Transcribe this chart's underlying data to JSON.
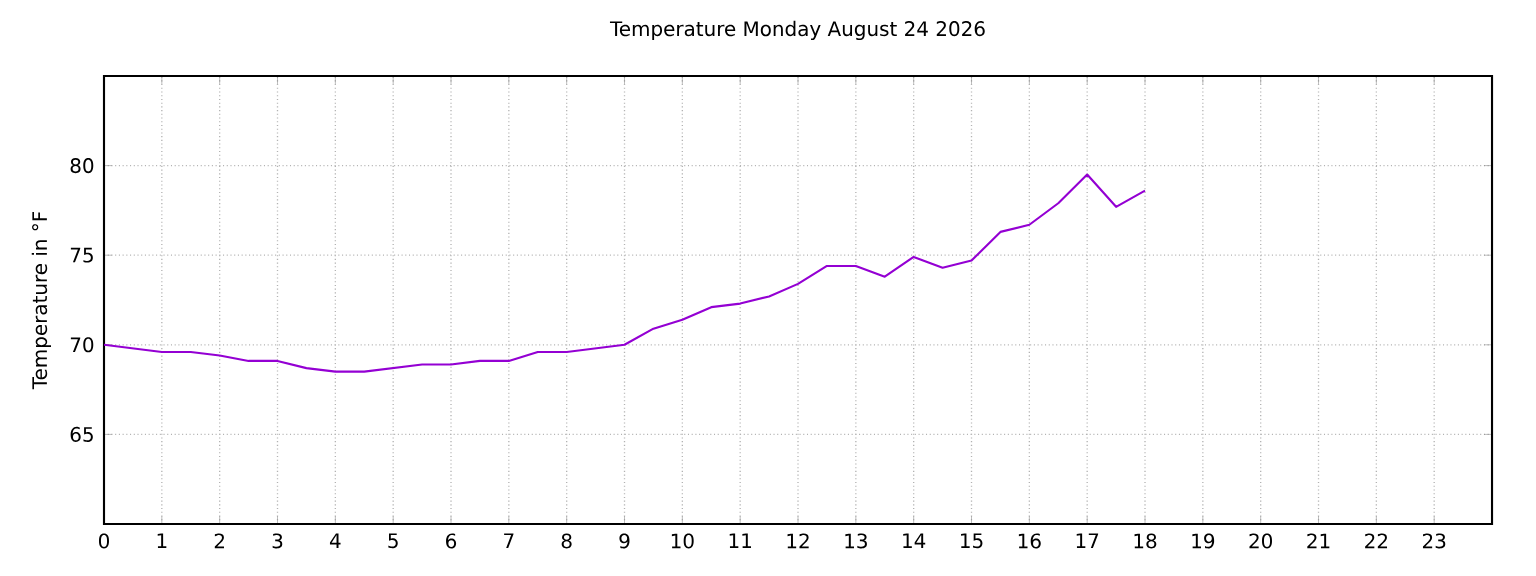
{
  "chart_data": {
    "type": "line",
    "title": "Temperature Monday August 24 2026",
    "ylabel": "Temperature in °F",
    "x": [
      0,
      0.5,
      1,
      1.5,
      2,
      2.5,
      3,
      3.5,
      4,
      4.5,
      5,
      5.5,
      6,
      6.5,
      7,
      7.5,
      8,
      8.5,
      9,
      9.5,
      10,
      10.5,
      11,
      11.5,
      12,
      12.5,
      13,
      13.5,
      14,
      14.5,
      15,
      15.5,
      16,
      16.5,
      17,
      17.5,
      18
    ],
    "series": [
      {
        "color": "#9400d3",
        "values": [
          70.0,
          69.8,
          69.6,
          69.6,
          69.4,
          69.1,
          69.1,
          68.7,
          68.5,
          68.5,
          68.7,
          68.9,
          68.9,
          69.1,
          69.1,
          69.6,
          69.6,
          69.8,
          70.0,
          70.9,
          71.4,
          72.1,
          72.3,
          72.7,
          73.4,
          74.4,
          74.4,
          73.8,
          74.9,
          74.3,
          74.7,
          76.3,
          76.7,
          77.9,
          79.5,
          77.7,
          78.6
        ]
      }
    ],
    "xlim": [
      0,
      24
    ],
    "ylim": [
      60,
      85
    ],
    "xticks": [
      0,
      1,
      2,
      3,
      4,
      5,
      6,
      7,
      8,
      9,
      10,
      11,
      12,
      13,
      14,
      15,
      16,
      17,
      18,
      19,
      20,
      21,
      22,
      23
    ],
    "yticks": [
      65,
      70,
      75,
      80
    ],
    "grid": true,
    "marker": "none",
    "line_style": "solid"
  }
}
